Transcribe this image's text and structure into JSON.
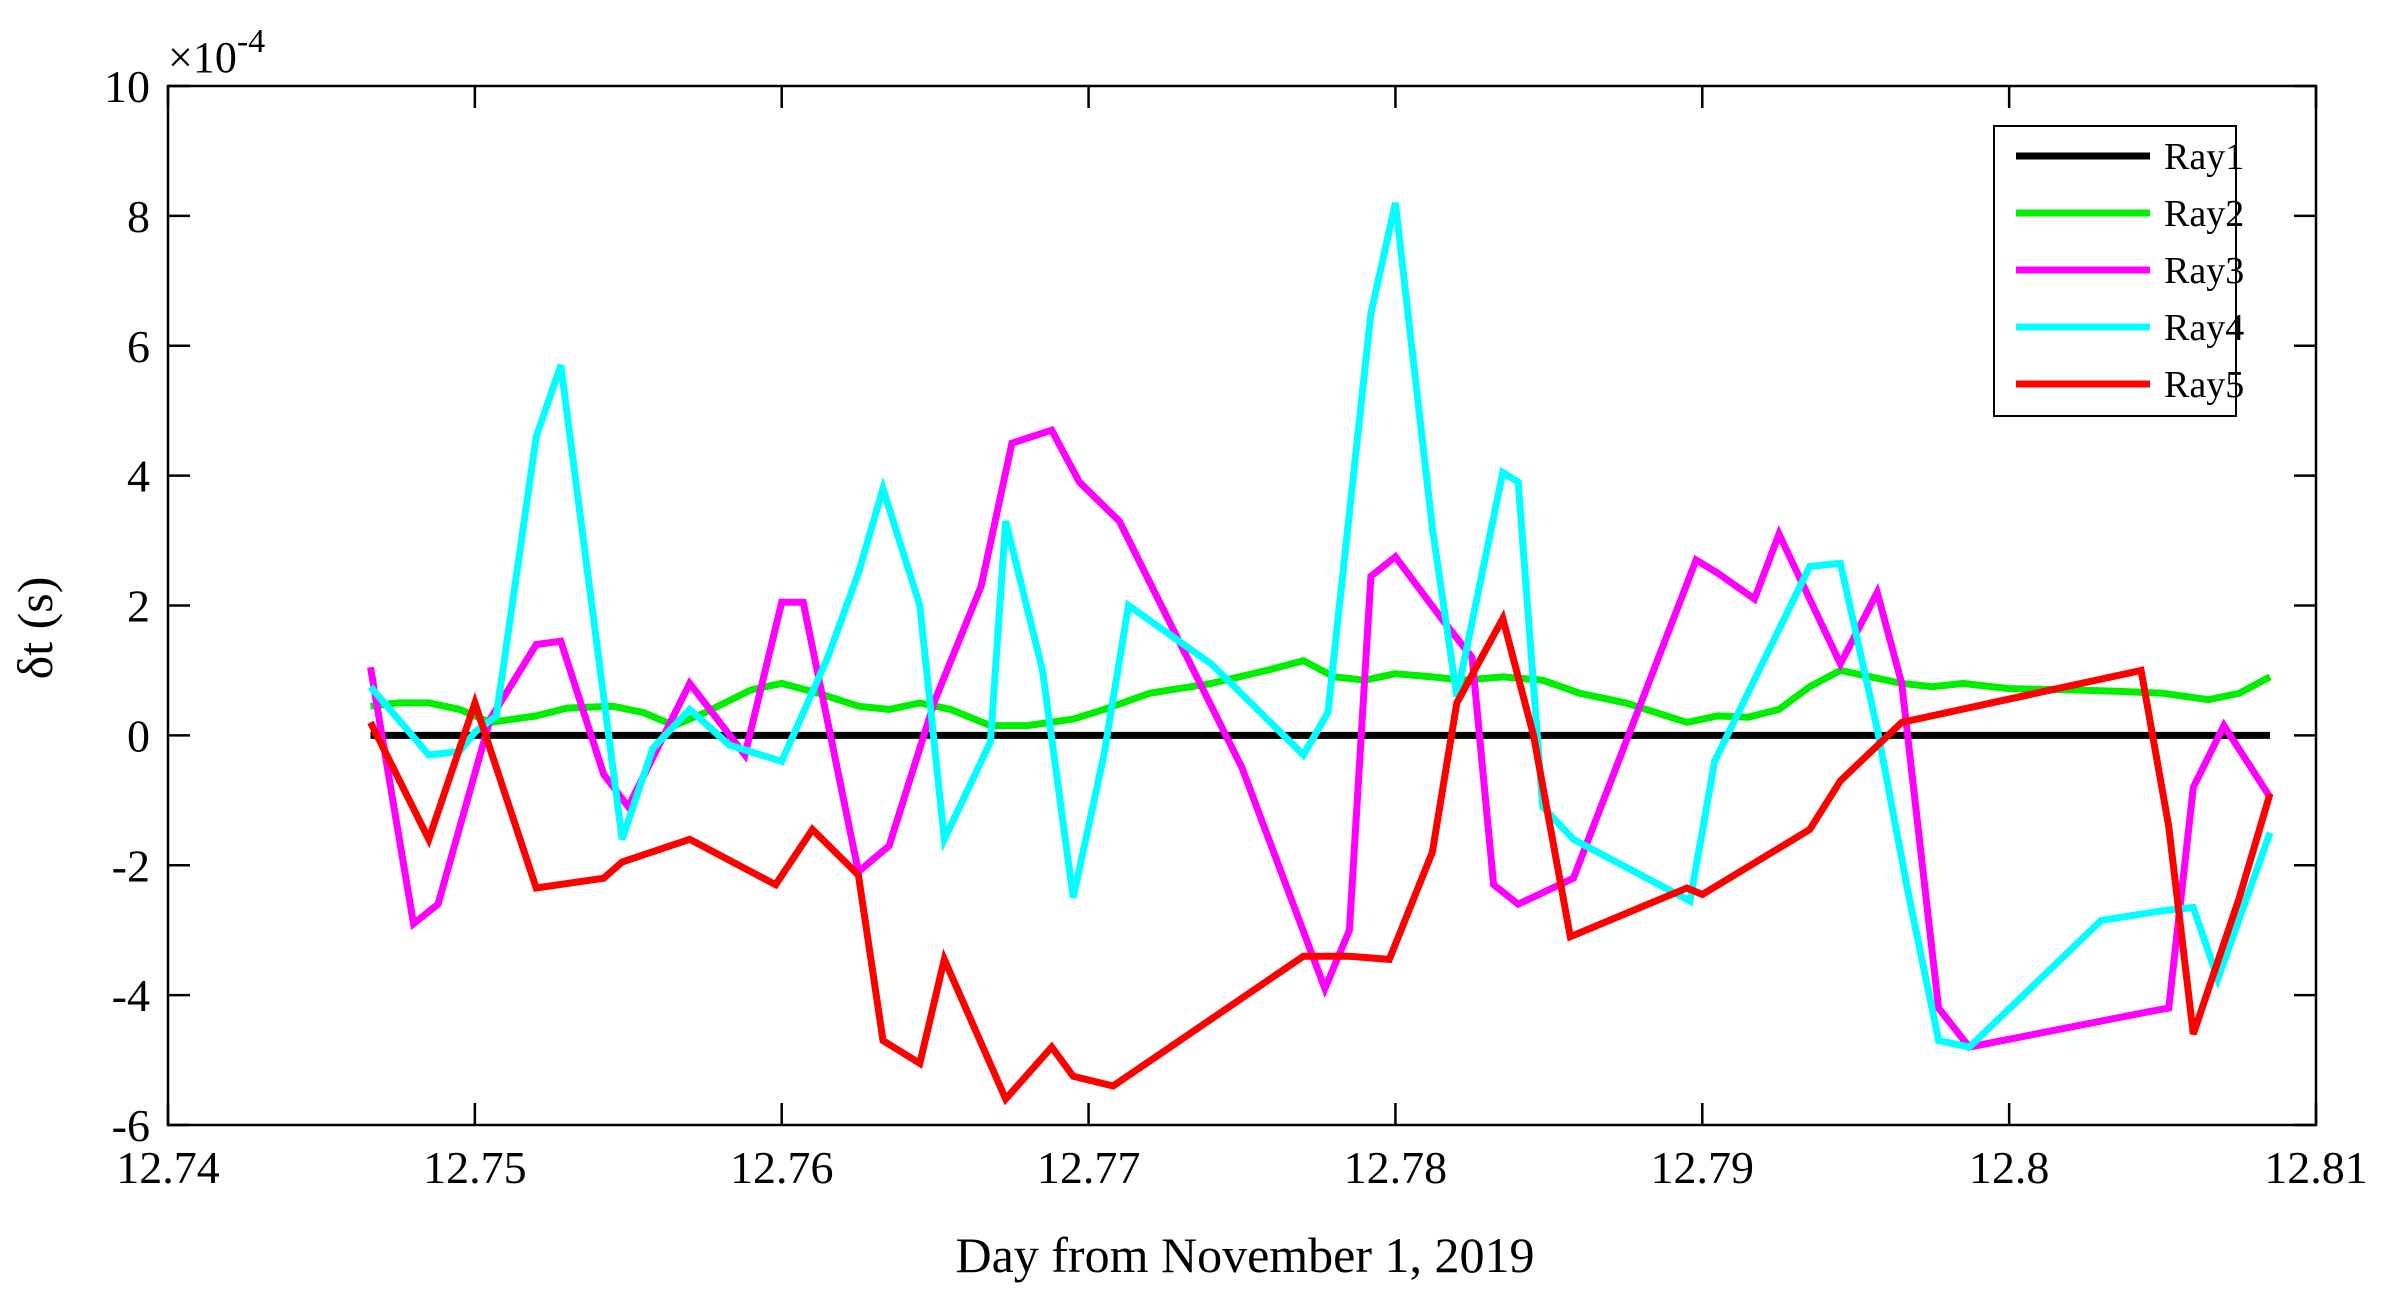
{
  "chart_data": {
    "type": "line",
    "title": "",
    "xlabel": "Day from November 1, 2019",
    "ylabel": "δt (s)",
    "exponent_label": "×10",
    "exponent_value": "-4",
    "xlim": [
      12.74,
      12.81
    ],
    "ylim": [
      -6,
      10
    ],
    "xticks": [
      "12.74",
      "12.75",
      "12.76",
      "12.77",
      "12.78",
      "12.79",
      "12.8",
      "12.81"
    ],
    "yticks": [
      "-6",
      "-4",
      "-2",
      "0",
      "2",
      "4",
      "6",
      "8",
      "10"
    ],
    "grid": false,
    "legend_position": "top-right",
    "series": [
      {
        "name": "Ray1",
        "color": "#000000",
        "x": [
          12.7466,
          12.7485,
          12.75,
          12.752,
          12.755,
          12.76,
          12.765,
          12.77,
          12.775,
          12.78,
          12.785,
          12.79,
          12.795,
          12.8,
          12.805,
          12.8085
        ],
        "y": [
          0,
          0,
          0,
          0,
          0,
          0,
          0,
          0,
          0,
          0,
          0,
          0,
          0,
          0,
          0,
          0
        ]
      },
      {
        "name": "Ray2",
        "color": "#00ee00",
        "x": [
          12.7466,
          12.7475,
          12.7485,
          12.7495,
          12.7505,
          12.752,
          12.753,
          12.7545,
          12.7555,
          12.7565,
          12.7575,
          12.759,
          12.76,
          12.7612,
          12.7625,
          12.7635,
          12.7645,
          12.7655,
          12.7668,
          12.768,
          12.7695,
          12.7705,
          12.772,
          12.774,
          12.7758,
          12.777,
          12.778,
          12.779,
          12.78,
          12.7812,
          12.7822,
          12.7835,
          12.7848,
          12.786,
          12.7875,
          12.7895,
          12.7905,
          12.7915,
          12.7925,
          12.7935,
          12.7945,
          12.7955,
          12.7965,
          12.7975,
          12.7985,
          12.8,
          12.802,
          12.8035,
          12.805,
          12.8065,
          12.8075,
          12.8085
        ],
        "y": [
          0.45,
          0.5,
          0.5,
          0.4,
          0.2,
          0.3,
          0.42,
          0.45,
          0.35,
          0.15,
          0.35,
          0.7,
          0.8,
          0.65,
          0.45,
          0.4,
          0.5,
          0.4,
          0.15,
          0.15,
          0.25,
          0.4,
          0.65,
          0.8,
          1.0,
          1.15,
          0.9,
          0.85,
          0.95,
          0.9,
          0.85,
          0.9,
          0.85,
          0.65,
          0.5,
          0.2,
          0.3,
          0.28,
          0.4,
          0.75,
          1.0,
          0.9,
          0.8,
          0.75,
          0.8,
          0.72,
          0.7,
          0.68,
          0.65,
          0.55,
          0.65,
          0.9
        ]
      },
      {
        "name": "Ray3",
        "color": "#ff00ff",
        "x": [
          12.7466,
          12.748,
          12.7488,
          12.7505,
          12.752,
          12.7528,
          12.7542,
          12.755,
          12.757,
          12.7588,
          12.76,
          12.7607,
          12.7625,
          12.7635,
          12.765,
          12.7665,
          12.7675,
          12.7688,
          12.7697,
          12.771,
          12.775,
          12.7777,
          12.7785,
          12.7792,
          12.78,
          12.7815,
          12.7825,
          12.7832,
          12.784,
          12.7858,
          12.7898,
          12.7905,
          12.7917,
          12.7925,
          12.7945,
          12.7957,
          12.7965,
          12.7977,
          12.7987,
          12.8046,
          12.8052,
          12.806,
          12.807,
          12.8085
        ],
        "y": [
          1.05,
          -2.9,
          -2.6,
          0.25,
          1.4,
          1.45,
          -0.6,
          -1.1,
          0.8,
          -0.3,
          2.05,
          2.05,
          -2.1,
          -1.7,
          0.55,
          2.3,
          4.5,
          4.7,
          3.9,
          3.3,
          -0.5,
          -3.9,
          -3.0,
          2.45,
          2.75,
          1.8,
          1.2,
          -2.3,
          -2.6,
          -2.2,
          2.7,
          2.5,
          2.1,
          3.1,
          1.1,
          2.2,
          0.8,
          -4.2,
          -4.8,
          -4.25,
          -4.2,
          -0.8,
          0.15,
          -0.95
        ]
      },
      {
        "name": "Ray4",
        "color": "#00ffff",
        "x": [
          12.7466,
          12.7485,
          12.7495,
          12.75,
          12.7507,
          12.752,
          12.7528,
          12.7548,
          12.7558,
          12.757,
          12.7583,
          12.76,
          12.7615,
          12.7625,
          12.7633,
          12.7645,
          12.7653,
          12.7668,
          12.7673,
          12.7685,
          12.7695,
          12.7705,
          12.7713,
          12.774,
          12.777,
          12.7778,
          12.7792,
          12.78,
          12.7812,
          12.782,
          12.7835,
          12.784,
          12.7848,
          12.7858,
          12.7896,
          12.7904,
          12.7935,
          12.7945,
          12.7957,
          12.7967,
          12.7977,
          12.7987,
          12.803,
          12.805,
          12.806,
          12.8068,
          12.8085
        ],
        "y": [
          0.75,
          -0.3,
          -0.25,
          0.05,
          0.3,
          4.6,
          5.7,
          -1.6,
          -0.2,
          0.4,
          -0.15,
          -0.4,
          1.2,
          2.5,
          3.8,
          2.0,
          -1.6,
          -0.1,
          3.3,
          1.0,
          -2.5,
          -0.3,
          2.0,
          1.1,
          -0.3,
          0.35,
          6.5,
          8.2,
          3.2,
          0.6,
          4.05,
          3.9,
          -1.1,
          -1.6,
          -2.55,
          -0.4,
          2.6,
          2.65,
          0.1,
          -2.4,
          -4.7,
          -4.8,
          -2.85,
          -2.7,
          -2.65,
          -3.75,
          -1.5
        ]
      },
      {
        "name": "Ray5",
        "color": "#ff0000",
        "x": [
          12.7466,
          12.7485,
          12.75,
          12.752,
          12.7542,
          12.7548,
          12.757,
          12.7598,
          12.761,
          12.7625,
          12.7633,
          12.7645,
          12.7653,
          12.7673,
          12.7688,
          12.7695,
          12.7708,
          12.777,
          12.7785,
          12.7798,
          12.7812,
          12.782,
          12.7835,
          12.7845,
          12.7857,
          12.7895,
          12.79,
          12.7935,
          12.7945,
          12.7965,
          12.8043,
          12.8052,
          12.806,
          12.8075,
          12.8085
        ],
        "y": [
          0.2,
          -1.6,
          0.5,
          -2.35,
          -2.2,
          -1.95,
          -1.6,
          -2.3,
          -1.45,
          -2.15,
          -4.7,
          -5.05,
          -3.45,
          -5.6,
          -4.8,
          -5.25,
          -5.4,
          -3.4,
          -3.4,
          -3.45,
          -1.8,
          0.5,
          1.8,
          0.0,
          -3.1,
          -2.35,
          -2.45,
          -1.45,
          -0.7,
          0.2,
          1.0,
          -1.4,
          -4.6,
          -2.5,
          -0.9
        ]
      }
    ]
  }
}
